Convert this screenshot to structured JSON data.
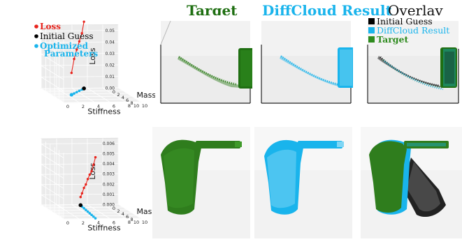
{
  "column_titles": [
    {
      "text": "Target",
      "color": "#1f6f12"
    },
    {
      "text": "DiffCloud Result",
      "color": "#19b4ec"
    },
    {
      "text": "Overlay",
      "color": "#111111"
    }
  ],
  "overlay_legend": [
    {
      "label": "Initial Guess",
      "color": "#000000"
    },
    {
      "label": "DiffCloud Result",
      "color": "#19b4ec"
    },
    {
      "label": "Target",
      "color": "#2e8b1e"
    }
  ],
  "colors": {
    "loss": "#e8231c",
    "initial": "#000000",
    "optimized": "#19b4ec",
    "target": "#1f6f12",
    "result": "#19b4ec",
    "guess": "#111111"
  },
  "chart_data": [
    {
      "type": "line",
      "projection": "3d",
      "xlabel": "Mass",
      "ylabel": "Stiffness",
      "zlabel": "Loss",
      "mass_ticks": [
        "0",
        "2",
        "4",
        "6",
        "8",
        "10"
      ],
      "stiffness_ticks": [
        "0",
        "2",
        "4",
        "6",
        "8",
        "10"
      ],
      "loss_ticks": [
        "0.00",
        "0.01",
        "0.02",
        "0.03",
        "0.04",
        "0.05"
      ],
      "zlim": [
        0,
        0.055
      ],
      "legend": [
        {
          "label": "Loss",
          "color": "#e8231c"
        },
        {
          "label": "Initial Guess",
          "color": "#000000"
        },
        {
          "label": "Optimized Parameters",
          "color": "#19b4ec"
        }
      ],
      "series": [
        {
          "name": "Loss",
          "points": [
            {
              "mass": 0.2,
              "stiffness": 5.5,
              "loss": 0.058
            },
            {
              "mass": 1.0,
              "stiffness": 5.0,
              "loss": 0.049
            },
            {
              "mass": 1.9,
              "stiffness": 4.4,
              "loss": 0.043
            },
            {
              "mass": 2.8,
              "stiffness": 3.8,
              "loss": 0.037
            },
            {
              "mass": 3.7,
              "stiffness": 3.2,
              "loss": 0.03
            },
            {
              "mass": 4.6,
              "stiffness": 2.6,
              "loss": 0.019
            }
          ]
        },
        {
          "name": "Optimized Parameters",
          "points": [
            {
              "mass": 0.2,
              "stiffness": 5.5,
              "loss": 0
            },
            {
              "mass": 1.0,
              "stiffness": 5.0,
              "loss": 0
            },
            {
              "mass": 1.9,
              "stiffness": 4.4,
              "loss": 0
            },
            {
              "mass": 2.8,
              "stiffness": 3.8,
              "loss": 0
            },
            {
              "mass": 3.7,
              "stiffness": 3.2,
              "loss": 0
            },
            {
              "mass": 4.6,
              "stiffness": 2.6,
              "loss": 0
            }
          ]
        },
        {
          "name": "Initial Guess",
          "points": [
            {
              "mass": 0.2,
              "stiffness": 5.5,
              "loss": 0
            }
          ]
        }
      ]
    },
    {
      "type": "line",
      "projection": "3d",
      "xlabel": "Mass",
      "ylabel": "Stiffness",
      "zlabel": "Loss",
      "mass_ticks": [
        "0",
        "2",
        "4",
        "6",
        "8",
        "10"
      ],
      "stiffness_ticks": [
        "0",
        "2",
        "4",
        "6",
        "8",
        "10"
      ],
      "loss_ticks": [
        "0.000",
        "0.001",
        "0.002",
        "0.003",
        "0.004",
        "0.005",
        "0.006"
      ],
      "zlim": [
        0,
        0.0065
      ],
      "series": [
        {
          "name": "Loss",
          "points": [
            {
              "mass": 9.8,
              "stiffness": 4.2,
              "loss": 0.006
            },
            {
              "mass": 8.6,
              "stiffness": 4.3,
              "loss": 0.0051
            },
            {
              "mass": 7.4,
              "stiffness": 4.4,
              "loss": 0.0043
            },
            {
              "mass": 6.2,
              "stiffness": 4.5,
              "loss": 0.0038
            },
            {
              "mass": 5.0,
              "stiffness": 4.6,
              "loss": 0.0032
            },
            {
              "mass": 3.8,
              "stiffness": 4.7,
              "loss": 0.0025
            },
            {
              "mass": 2.6,
              "stiffness": 4.8,
              "loss": 0.002
            },
            {
              "mass": 1.4,
              "stiffness": 4.9,
              "loss": 0.0013
            },
            {
              "mass": 0.4,
              "stiffness": 5.0,
              "loss": 0.0008
            }
          ]
        },
        {
          "name": "Optimized Parameters",
          "points": [
            {
              "mass": 9.8,
              "stiffness": 4.2,
              "loss": 0
            },
            {
              "mass": 8.6,
              "stiffness": 4.3,
              "loss": 0
            },
            {
              "mass": 7.4,
              "stiffness": 4.4,
              "loss": 0
            },
            {
              "mass": 6.2,
              "stiffness": 4.5,
              "loss": 0
            },
            {
              "mass": 5.0,
              "stiffness": 4.6,
              "loss": 0
            },
            {
              "mass": 3.8,
              "stiffness": 4.7,
              "loss": 0
            },
            {
              "mass": 2.6,
              "stiffness": 4.8,
              "loss": 0
            },
            {
              "mass": 1.4,
              "stiffness": 4.9,
              "loss": 0
            },
            {
              "mass": 0.4,
              "stiffness": 5.0,
              "loss": 0
            }
          ]
        },
        {
          "name": "Initial Guess",
          "points": [
            {
              "mass": 0.4,
              "stiffness": 5.0,
              "loss": 0
            }
          ]
        }
      ]
    }
  ]
}
